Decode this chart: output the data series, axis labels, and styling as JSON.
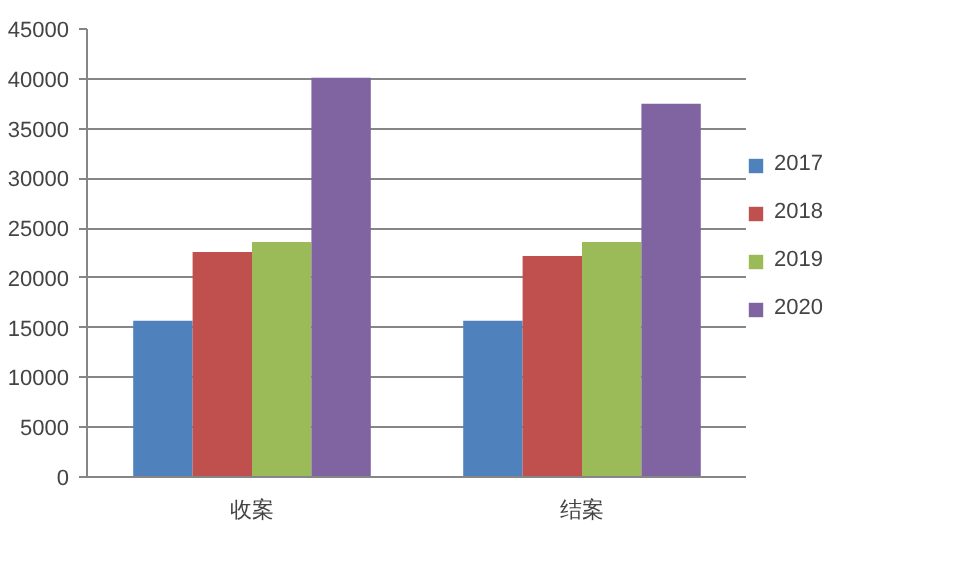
{
  "chart_data": {
    "type": "bar",
    "categories": [
      "收案",
      "结案"
    ],
    "series": [
      {
        "name": "2017",
        "color": "#4f81bd",
        "values": [
          15700,
          15700
        ]
      },
      {
        "name": "2018",
        "color": "#c0504d",
        "values": [
          22600,
          22200
        ]
      },
      {
        "name": "2019",
        "color": "#9bbb59",
        "values": [
          23600,
          23600
        ]
      },
      {
        "name": "2020",
        "color": "#8064a2",
        "values": [
          40100,
          37500
        ]
      }
    ],
    "ylim": [
      0,
      45000
    ],
    "yticks": [
      0,
      5000,
      10000,
      15000,
      20000,
      25000,
      30000,
      35000,
      40000,
      45000
    ],
    "grid": "y",
    "legend": "right"
  }
}
